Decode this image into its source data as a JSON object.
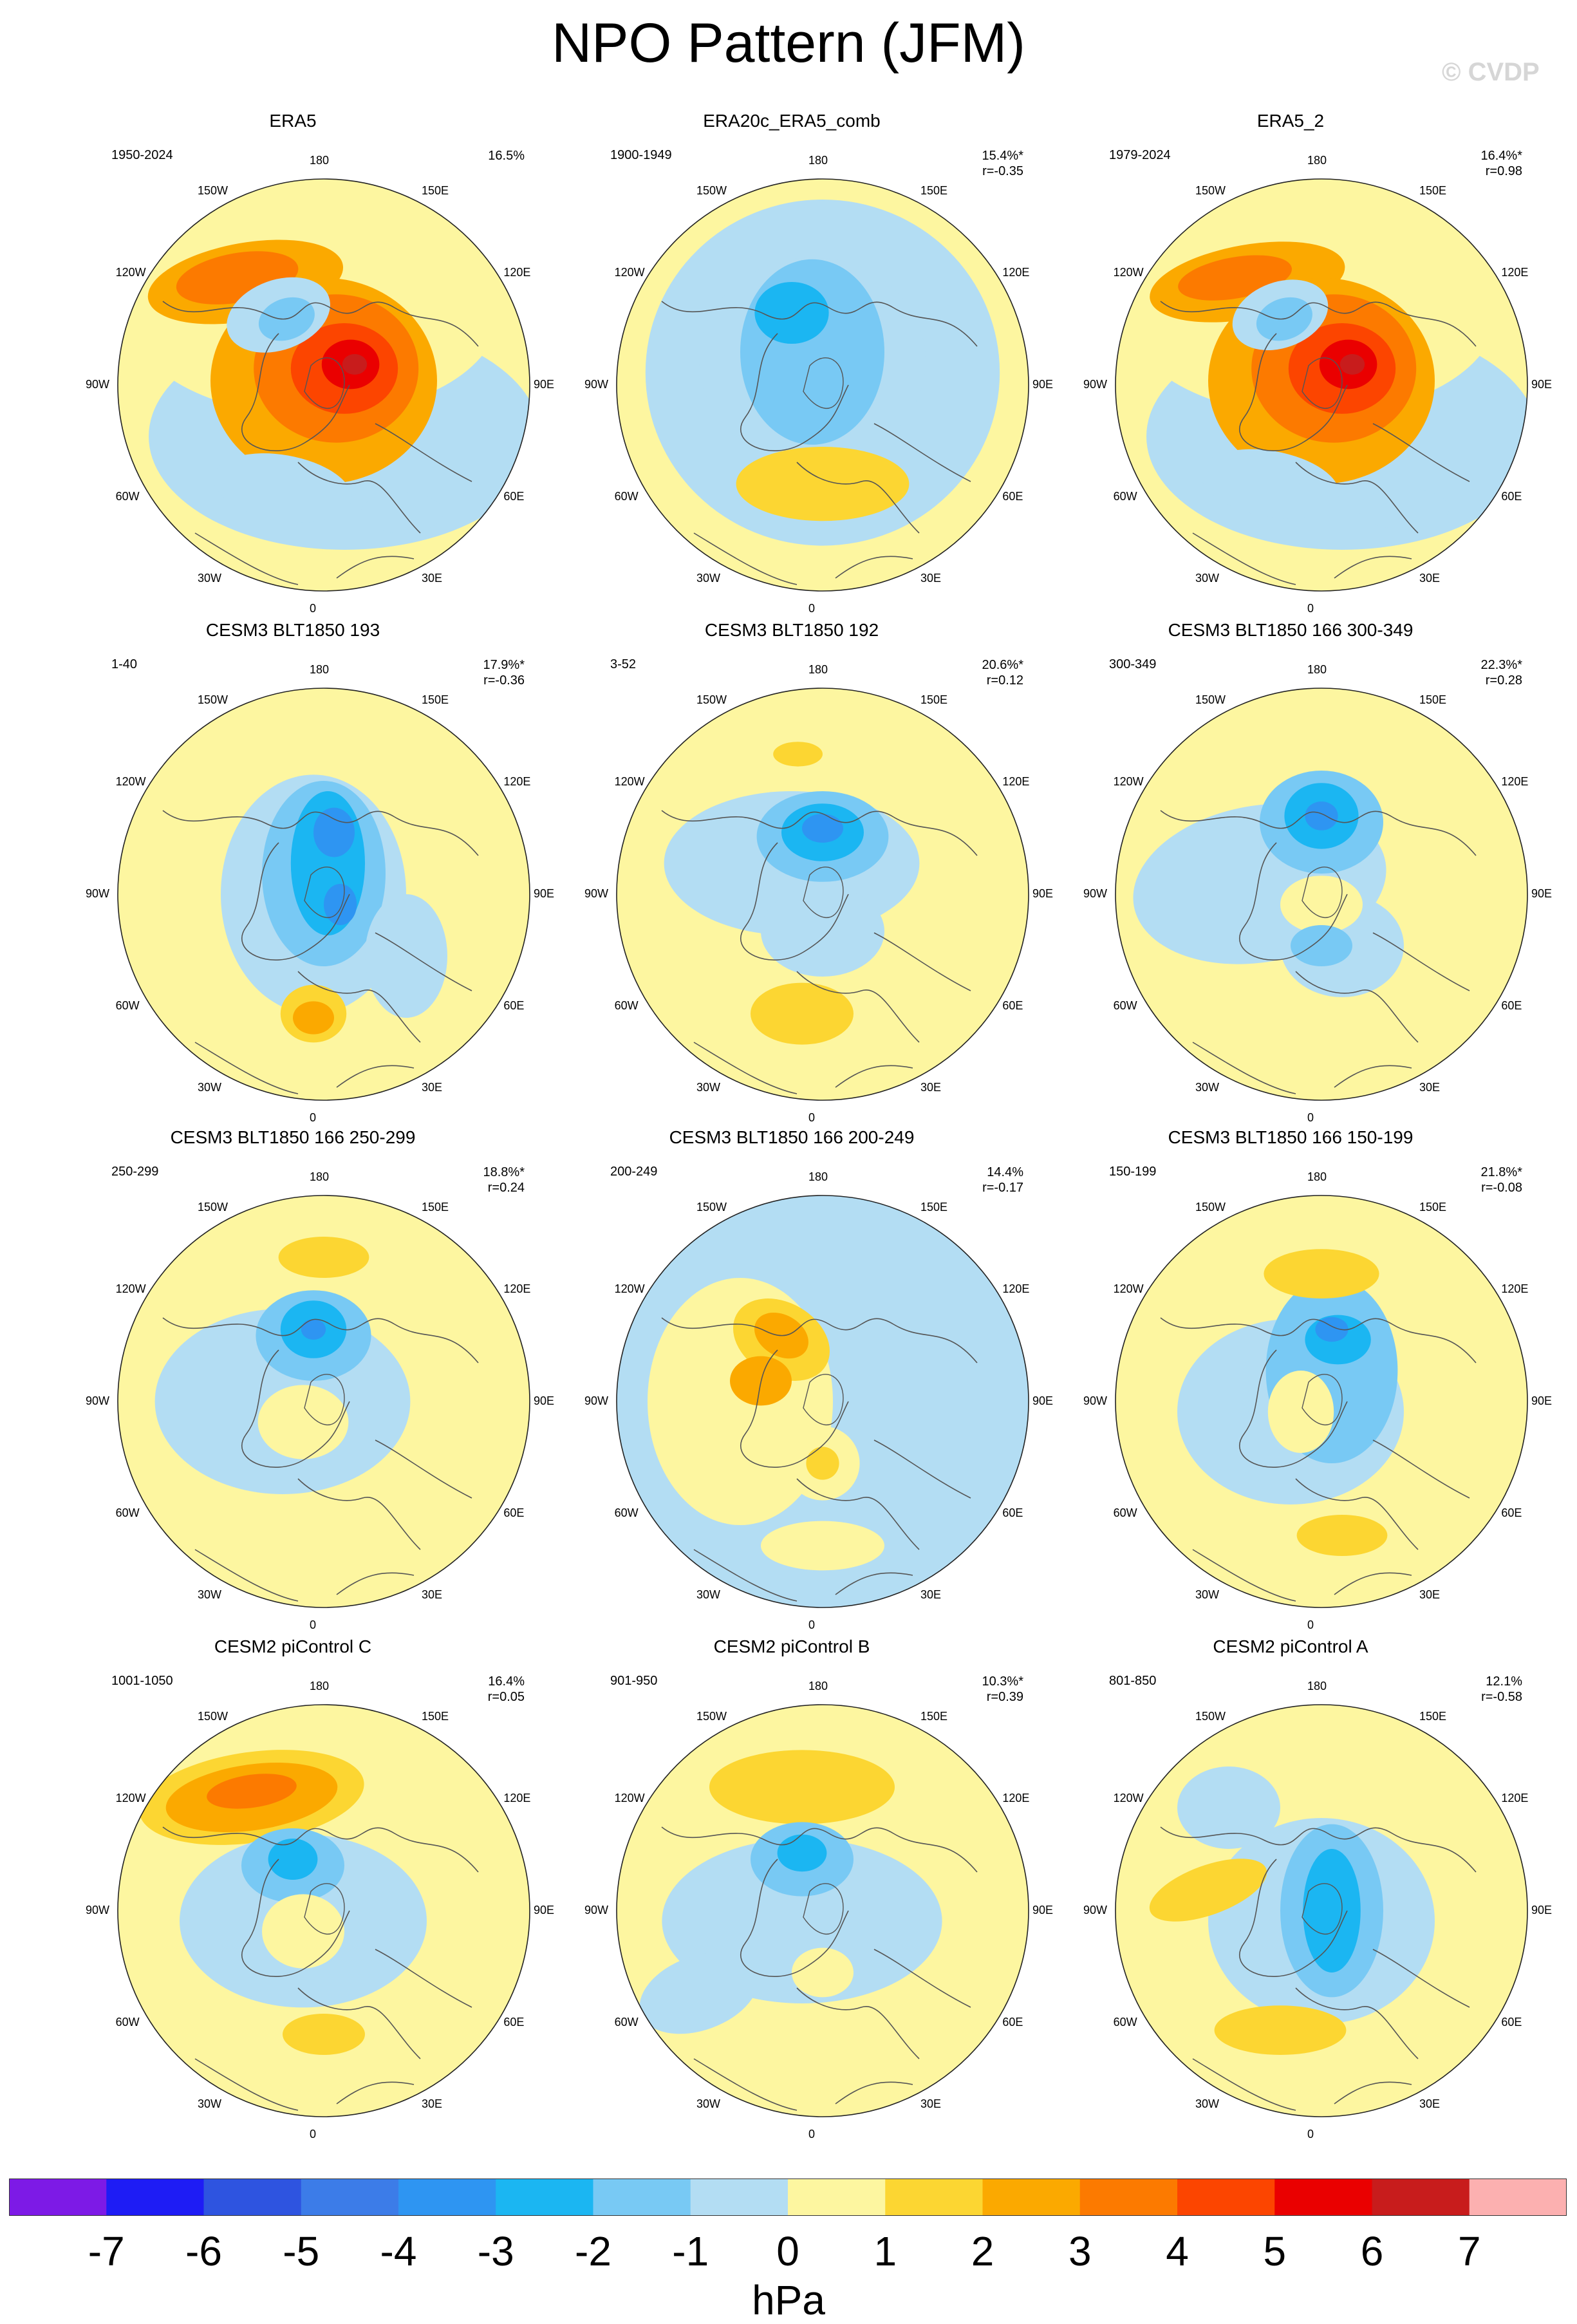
{
  "title": "NPO Pattern (JFM)",
  "watermark": "© CVDP",
  "units": "hPa",
  "lon_labels": [
    "180",
    "150E",
    "120E",
    "90E",
    "60E",
    "30E",
    "0",
    "30W",
    "60W",
    "90W",
    "120W",
    "150W"
  ],
  "colors": {
    "neg": [
      "#7d1ae6",
      "#1e1cf5",
      "#2e54e0",
      "#3c7ce8",
      "#2e95f2",
      "#1bb6f2",
      "#78c9f4",
      "#b3ddf3"
    ],
    "pos": [
      "#fdf6a0",
      "#fcd632",
      "#fba900",
      "#fc7a00",
      "#fc4500",
      "#ea0000",
      "#c81c1c",
      "#fcb0b0"
    ],
    "coast": "#555555"
  },
  "colorbar": {
    "ticks": [
      "-7",
      "-6",
      "-5",
      "-4",
      "-3",
      "-2",
      "-1",
      "0",
      "1",
      "2",
      "3",
      "4",
      "5",
      "6",
      "7"
    ]
  },
  "panels": [
    {
      "title": "ERA5",
      "years": "1950-2024",
      "pct": "16.5%",
      "r": "",
      "bg": 1,
      "blobs": [
        [
          -0.38,
          -0.5,
          0.48,
          0.19,
          -10,
          2
        ],
        [
          -0.42,
          -0.52,
          0.3,
          0.12,
          -10,
          3
        ],
        [
          0.0,
          -0.02,
          0.55,
          0.5,
          0,
          2
        ],
        [
          0.06,
          -0.08,
          0.4,
          0.36,
          0,
          3
        ],
        [
          0.1,
          -0.08,
          0.26,
          0.22,
          0,
          4
        ],
        [
          0.13,
          -0.1,
          0.14,
          0.12,
          0,
          5
        ],
        [
          0.15,
          -0.1,
          0.06,
          0.05,
          0,
          6
        ],
        [
          -0.22,
          -0.34,
          0.26,
          0.17,
          -20,
          -1
        ],
        [
          -0.18,
          -0.32,
          0.14,
          0.1,
          -20,
          -2
        ],
        [
          -0.2,
          0.5,
          0.34,
          0.16,
          10,
          -1
        ],
        [
          0.38,
          0.62,
          0.2,
          0.1,
          0,
          -1
        ]
      ]
    },
    {
      "title": "ERA20c_ERA5_comb",
      "years": "1900-1949",
      "pct": "15.4%*",
      "r": "r=-0.35",
      "bg": 0,
      "blobs": [
        [
          0.0,
          -0.06,
          0.86,
          0.84,
          0,
          -1
        ],
        [
          -0.05,
          -0.12,
          0.55,
          0.5,
          0,
          -1
        ],
        [
          -0.05,
          -0.16,
          0.35,
          0.45,
          0,
          -2
        ],
        [
          -0.15,
          -0.35,
          0.18,
          0.15,
          0,
          -3
        ],
        [
          0.0,
          0.48,
          0.42,
          0.18,
          0,
          1
        ]
      ]
    },
    {
      "title": "ERA5_2",
      "years": "1979-2024",
      "pct": "16.4%*",
      "r": "r=0.98",
      "bg": 1,
      "blobs": [
        [
          -0.36,
          -0.5,
          0.48,
          0.18,
          -10,
          2
        ],
        [
          -0.42,
          -0.52,
          0.28,
          0.1,
          -10,
          3
        ],
        [
          0.0,
          -0.02,
          0.55,
          0.5,
          0,
          2
        ],
        [
          0.06,
          -0.08,
          0.4,
          0.36,
          0,
          3
        ],
        [
          0.1,
          -0.08,
          0.26,
          0.22,
          0,
          4
        ],
        [
          0.13,
          -0.1,
          0.14,
          0.12,
          0,
          5
        ],
        [
          0.15,
          -0.1,
          0.06,
          0.05,
          0,
          6
        ],
        [
          -0.2,
          -0.34,
          0.24,
          0.16,
          -20,
          -1
        ],
        [
          -0.18,
          -0.32,
          0.14,
          0.1,
          -20,
          -2
        ],
        [
          -0.25,
          0.48,
          0.34,
          0.16,
          10,
          -1
        ],
        [
          0.4,
          0.6,
          0.22,
          0.1,
          0,
          -1
        ]
      ]
    },
    {
      "title": "CESM3 BLT1850 193",
      "years": "1-40",
      "pct": "17.9%*",
      "r": "r=-0.36",
      "bg": 0,
      "blobs": [
        [
          -0.05,
          0.0,
          0.45,
          0.58,
          0,
          -1
        ],
        [
          0.0,
          -0.1,
          0.3,
          0.45,
          0,
          -2
        ],
        [
          0.02,
          -0.15,
          0.18,
          0.35,
          0,
          -3
        ],
        [
          0.05,
          -0.3,
          0.1,
          0.12,
          0,
          -4
        ],
        [
          0.08,
          0.05,
          0.08,
          0.1,
          0,
          -4
        ],
        [
          0.4,
          0.3,
          0.2,
          0.3,
          0,
          -1
        ],
        [
          -0.05,
          0.58,
          0.16,
          0.14,
          0,
          1
        ],
        [
          -0.05,
          0.6,
          0.1,
          0.08,
          0,
          2
        ]
      ]
    },
    {
      "title": "CESM3 BLT1850 192",
      "years": "3-52",
      "pct": "20.6%*",
      "r": "r=0.12",
      "bg": 0,
      "blobs": [
        [
          -0.15,
          -0.15,
          0.62,
          0.35,
          0,
          -1
        ],
        [
          0.0,
          -0.28,
          0.32,
          0.22,
          0,
          -2
        ],
        [
          0.0,
          -0.3,
          0.2,
          0.14,
          0,
          -3
        ],
        [
          0.0,
          -0.32,
          0.1,
          0.07,
          0,
          -4
        ],
        [
          -0.1,
          0.58,
          0.25,
          0.15,
          0,
          1
        ],
        [
          -0.12,
          -0.68,
          0.12,
          0.06,
          0,
          1
        ],
        [
          0.0,
          0.18,
          0.3,
          0.22,
          0,
          -1
        ]
      ]
    },
    {
      "title": "CESM3 BLT1850 166 300-349",
      "years": "300-349",
      "pct": "22.3%*",
      "r": "r=0.28",
      "bg": 0,
      "blobs": [
        [
          -0.3,
          -0.05,
          0.62,
          0.38,
          -10,
          -1
        ],
        [
          0.0,
          -0.35,
          0.3,
          0.25,
          0,
          -2
        ],
        [
          0.0,
          -0.38,
          0.18,
          0.16,
          0,
          -3
        ],
        [
          0.0,
          -0.38,
          0.08,
          0.07,
          0,
          -4
        ],
        [
          0.1,
          0.25,
          0.3,
          0.25,
          0,
          -1
        ],
        [
          0.0,
          0.05,
          0.2,
          0.14,
          0,
          0
        ],
        [
          0.0,
          0.25,
          0.15,
          0.1,
          0,
          -2
        ]
      ]
    },
    {
      "title": "CESM3 BLT1850 166 250-299",
      "years": "250-299",
      "pct": "18.8%*",
      "r": "r=0.24",
      "bg": 0,
      "blobs": [
        [
          -0.2,
          0.0,
          0.62,
          0.45,
          0,
          -1
        ],
        [
          -0.05,
          -0.32,
          0.28,
          0.22,
          0,
          -2
        ],
        [
          -0.05,
          -0.35,
          0.16,
          0.14,
          0,
          -3
        ],
        [
          -0.05,
          -0.35,
          0.06,
          0.05,
          0,
          -4
        ],
        [
          0.0,
          -0.7,
          0.22,
          0.1,
          0,
          1
        ],
        [
          -0.1,
          0.1,
          0.22,
          0.18,
          0,
          0
        ]
      ]
    },
    {
      "title": "CESM3 BLT1850 166 200-249",
      "years": "200-249",
      "pct": "14.4%",
      "r": "r=-0.17",
      "bg": -1,
      "blobs": [
        [
          -0.4,
          0.0,
          0.45,
          0.6,
          0,
          0
        ],
        [
          -0.2,
          -0.3,
          0.25,
          0.18,
          30,
          1
        ],
        [
          -0.2,
          -0.32,
          0.14,
          0.1,
          30,
          2
        ],
        [
          -0.3,
          -0.1,
          0.15,
          0.12,
          0,
          2
        ],
        [
          0.0,
          0.3,
          0.18,
          0.18,
          0,
          0
        ],
        [
          0.0,
          0.3,
          0.08,
          0.08,
          0,
          1
        ],
        [
          0.0,
          0.7,
          0.3,
          0.12,
          0,
          0
        ]
      ]
    },
    {
      "title": "CESM3 BLT1850 166 150-199",
      "years": "150-199",
      "pct": "21.8%*",
      "r": "r=-0.08",
      "bg": 0,
      "blobs": [
        [
          -0.15,
          0.05,
          0.55,
          0.45,
          0,
          -1
        ],
        [
          0.05,
          -0.15,
          0.32,
          0.45,
          0,
          -2
        ],
        [
          0.08,
          -0.3,
          0.16,
          0.12,
          0,
          -3
        ],
        [
          0.05,
          -0.35,
          0.08,
          0.06,
          0,
          -4
        ],
        [
          0.0,
          -0.62,
          0.28,
          0.12,
          0,
          1
        ],
        [
          0.1,
          0.65,
          0.22,
          0.1,
          0,
          1
        ],
        [
          -0.1,
          0.05,
          0.16,
          0.2,
          0,
          0
        ]
      ]
    },
    {
      "title": "CESM2 piControl C",
      "years": "1001-1050",
      "pct": "16.4%",
      "r": "r=0.05",
      "bg": 0,
      "blobs": [
        [
          -0.35,
          -0.55,
          0.55,
          0.22,
          -8,
          1
        ],
        [
          -0.35,
          -0.55,
          0.42,
          0.16,
          -8,
          2
        ],
        [
          -0.35,
          -0.58,
          0.22,
          0.08,
          -8,
          3
        ],
        [
          -0.1,
          0.05,
          0.6,
          0.42,
          0,
          -1
        ],
        [
          -0.15,
          -0.22,
          0.25,
          0.18,
          0,
          -2
        ],
        [
          -0.15,
          -0.25,
          0.12,
          0.1,
          0,
          -3
        ],
        [
          0.0,
          0.6,
          0.2,
          0.1,
          0,
          1
        ],
        [
          -0.1,
          0.1,
          0.2,
          0.18,
          0,
          0
        ]
      ]
    },
    {
      "title": "CESM2 piControl B",
      "years": "901-950",
      "pct": "10.3%*",
      "r": "r=0.39",
      "bg": 0,
      "blobs": [
        [
          -0.1,
          -0.6,
          0.45,
          0.18,
          0,
          1
        ],
        [
          -0.1,
          0.05,
          0.68,
          0.4,
          0,
          -1
        ],
        [
          -0.1,
          -0.25,
          0.25,
          0.18,
          0,
          -2
        ],
        [
          -0.1,
          -0.28,
          0.12,
          0.09,
          0,
          -3
        ],
        [
          -0.6,
          0.4,
          0.3,
          0.18,
          -20,
          -1
        ],
        [
          0.0,
          0.3,
          0.15,
          0.12,
          0,
          0
        ]
      ]
    },
    {
      "title": "CESM2 piControl A",
      "years": "801-850",
      "pct": "12.1%",
      "r": "r=-0.58",
      "bg": 0,
      "blobs": [
        [
          0.0,
          0.05,
          0.55,
          0.5,
          0,
          -1
        ],
        [
          0.05,
          0.0,
          0.25,
          0.42,
          0,
          -2
        ],
        [
          0.05,
          0.0,
          0.14,
          0.3,
          0,
          -3
        ],
        [
          -0.55,
          -0.1,
          0.3,
          0.12,
          -20,
          1
        ],
        [
          -0.2,
          0.58,
          0.32,
          0.12,
          0,
          1
        ],
        [
          -0.45,
          -0.5,
          0.25,
          0.2,
          0,
          -1
        ]
      ]
    }
  ]
}
